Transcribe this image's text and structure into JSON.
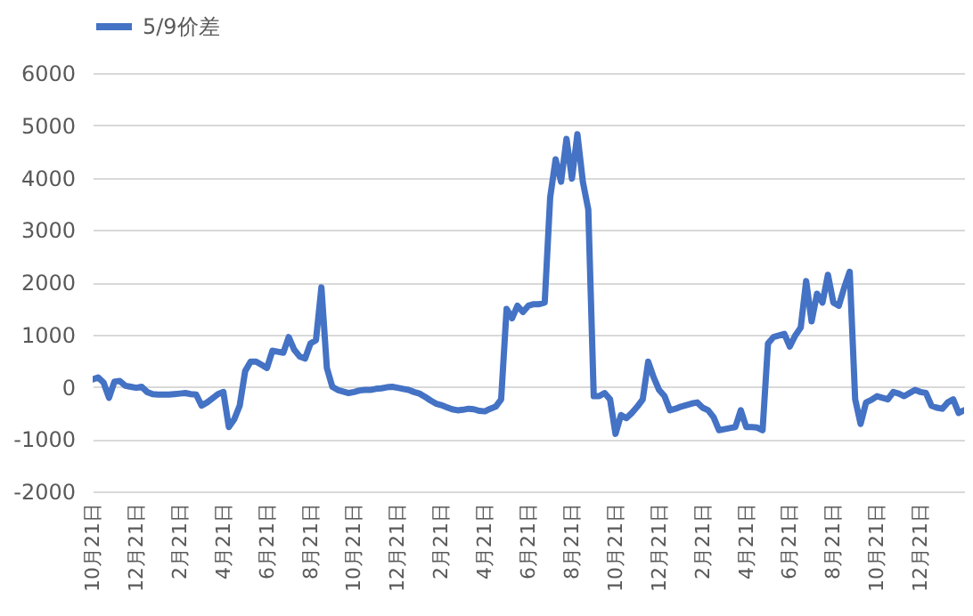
{
  "chart_data": {
    "type": "line",
    "categories": [
      "10月21日",
      null,
      null,
      null,
      null,
      null,
      null,
      null,
      "12月21日",
      null,
      null,
      null,
      null,
      null,
      null,
      null,
      "2月21日",
      null,
      null,
      null,
      null,
      null,
      null,
      null,
      "4月21日",
      null,
      null,
      null,
      null,
      null,
      null,
      null,
      "6月21日",
      null,
      null,
      null,
      null,
      null,
      null,
      null,
      "8月21日",
      null,
      null,
      null,
      null,
      null,
      null,
      null,
      "10月21日",
      null,
      null,
      null,
      null,
      null,
      null,
      null,
      "12月21日",
      null,
      null,
      null,
      null,
      null,
      null,
      null,
      "2月21日",
      null,
      null,
      null,
      null,
      null,
      null,
      null,
      "4月21日",
      null,
      null,
      null,
      null,
      null,
      null,
      null,
      "6月21日",
      null,
      null,
      null,
      null,
      null,
      null,
      null,
      "8月21日",
      null,
      null,
      null,
      null,
      null,
      null,
      null,
      "10月21日",
      null,
      null,
      null,
      null,
      null,
      null,
      null,
      "12月21日",
      null,
      null,
      null,
      null,
      null,
      null,
      null,
      "2月21日",
      null,
      null,
      null,
      null,
      null,
      null,
      null,
      "4月21日",
      null,
      null,
      null,
      null,
      null,
      null,
      null,
      "6月21日",
      null,
      null,
      null,
      null,
      null,
      null,
      null,
      "8月21日",
      null,
      null,
      null,
      null,
      null,
      null,
      null,
      "10月21日",
      null,
      null,
      null,
      null,
      null,
      null,
      null,
      "12月21日",
      null,
      null,
      null,
      null,
      null,
      null,
      null,
      null
    ],
    "series": [
      {
        "name": "5/9价差",
        "color": "#4472c4",
        "values": [
          140,
          180,
          80,
          -210,
          100,
          110,
          20,
          0,
          -20,
          0,
          -100,
          -140,
          -150,
          -150,
          -150,
          -140,
          -130,
          -120,
          -140,
          -150,
          -360,
          -300,
          -220,
          -140,
          -100,
          -770,
          -620,
          -360,
          300,
          480,
          480,
          420,
          360,
          690,
          670,
          650,
          950,
          710,
          580,
          540,
          830,
          890,
          1900,
          360,
          0,
          -60,
          -90,
          -120,
          -100,
          -70,
          -60,
          -60,
          -40,
          -30,
          -10,
          0,
          -20,
          -40,
          -60,
          -100,
          -130,
          -190,
          -260,
          -320,
          -350,
          -390,
          -430,
          -450,
          -440,
          -420,
          -430,
          -460,
          -470,
          -420,
          -380,
          -240,
          1490,
          1310,
          1550,
          1430,
          1550,
          1580,
          1580,
          1610,
          3620,
          4350,
          3920,
          4740,
          3980,
          4830,
          3920,
          3390,
          -180,
          -180,
          -120,
          -240,
          -900,
          -540,
          -600,
          -500,
          -380,
          -240,
          480,
          180,
          -60,
          -180,
          -450,
          -420,
          -380,
          -350,
          -320,
          -300,
          -400,
          -450,
          -580,
          -830,
          -810,
          -790,
          -770,
          -450,
          -770,
          -770,
          -780,
          -830,
          830,
          950,
          980,
          1010,
          770,
          980,
          1130,
          2020,
          1250,
          1780,
          1610,
          2140,
          1610,
          1550,
          1900,
          2200,
          -240,
          -710,
          -300,
          -250,
          -180,
          -210,
          -240,
          -100,
          -130,
          -180,
          -120,
          -60,
          -100,
          -120,
          -360,
          -400,
          -420,
          -300,
          -240,
          -500,
          -450
        ]
      }
    ],
    "ylim": [
      -2000,
      6000
    ],
    "yticks": [
      -2000,
      -1000,
      0,
      1000,
      2000,
      3000,
      4000,
      5000,
      6000
    ],
    "grid": "y",
    "legend": "top",
    "marker": "none"
  }
}
